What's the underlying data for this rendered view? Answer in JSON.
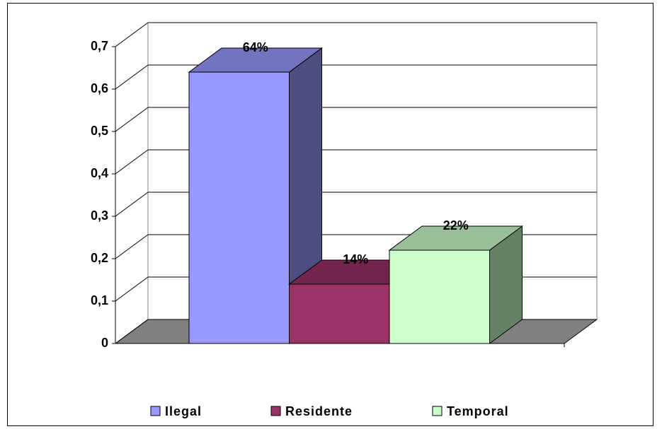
{
  "chart_data": {
    "type": "bar3d",
    "categories": [
      "Ilegal",
      "Residente",
      "Temporal"
    ],
    "values": [
      0.64,
      0.14,
      0.22
    ],
    "value_labels": [
      "64%",
      "14%",
      "22%"
    ],
    "colors": [
      "#9999ff",
      "#993366",
      "#ccffcc"
    ],
    "ylim": [
      0,
      0.7
    ],
    "yticks": [
      0,
      {
        "value": 0.1,
        "label": "0,1"
      },
      {
        "value": 0.2,
        "label": "0,2"
      },
      {
        "value": 0.3,
        "label": "0,3"
      },
      {
        "value": 0.4,
        "label": "0,4"
      },
      {
        "value": 0.5,
        "label": "0,5"
      },
      {
        "value": 0.6,
        "label": "0,6"
      },
      {
        "value": 0.7,
        "label": "0,7"
      }
    ],
    "grid": true,
    "legend": "bottom"
  }
}
